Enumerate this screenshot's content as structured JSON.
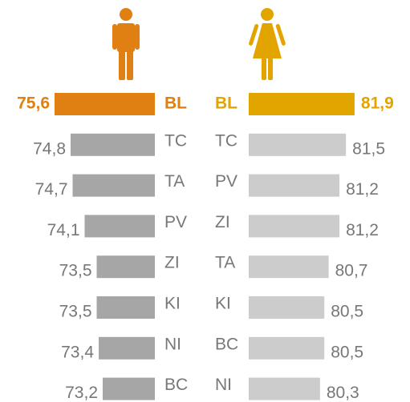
{
  "chart_data": [
    {
      "type": "bar",
      "orientation": "horizontal",
      "direction": "left",
      "categories": [
        "BL",
        "TC",
        "TA",
        "PV",
        "ZI",
        "KI",
        "NI",
        "BC"
      ],
      "values": [
        75.6,
        74.8,
        74.7,
        74.1,
        73.5,
        73.5,
        73.4,
        73.2
      ],
      "value_labels": [
        "75,6",
        "74,8",
        "74,7",
        "74,1",
        "73,5",
        "73,5",
        "73,4",
        "73,2"
      ],
      "colors": [
        "#e07f12",
        "#a6a6a6",
        "#a6a6a6",
        "#a6a6a6",
        "#a6a6a6",
        "#a6a6a6",
        "#a6a6a6",
        "#a6a6a6"
      ],
      "xlim": [
        70.6,
        76
      ]
    },
    {
      "type": "bar",
      "orientation": "horizontal",
      "direction": "right",
      "categories": [
        "BL",
        "TC",
        "PV",
        "ZI",
        "TA",
        "KI",
        "BC",
        "NI"
      ],
      "values": [
        81.9,
        81.5,
        81.2,
        81.2,
        80.7,
        80.5,
        80.5,
        80.3
      ],
      "value_labels": [
        "81,9",
        "81,5",
        "81,2",
        "81,2",
        "80,7",
        "80,5",
        "80,5",
        "80,3"
      ],
      "colors": [
        "#e2a500",
        "#cccccc",
        "#cccccc",
        "#cccccc",
        "#cccccc",
        "#cccccc",
        "#cccccc",
        "#cccccc"
      ],
      "xlim": [
        77,
        82.2
      ]
    }
  ]
}
